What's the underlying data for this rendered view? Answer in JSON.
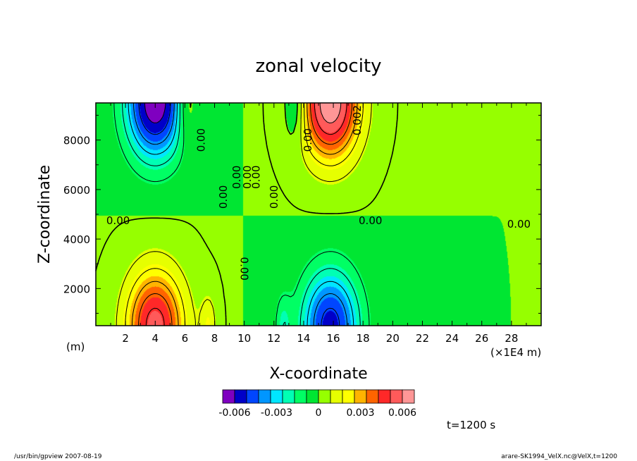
{
  "chart_data": {
    "type": "heatmap",
    "title": "zonal velocity",
    "xlabel": "X-coordinate",
    "ylabel": "Z-coordinate",
    "x_unit_left": "(m)",
    "x_unit_right": "(×1E4 m)",
    "xlim": [
      0,
      30
    ],
    "ylim": [
      500,
      9500
    ],
    "x_ticks": [
      "2",
      "4",
      "6",
      "8",
      "10",
      "12",
      "14",
      "16",
      "18",
      "20",
      "22",
      "24",
      "26",
      "28"
    ],
    "y_ticks": [
      "2000",
      "4000",
      "6000",
      "8000"
    ],
    "contour_labels": [
      "0.00",
      "0.00",
      "0.00",
      "0.00",
      "0.00",
      "0.00",
      "0.00",
      "0.00",
      "0.00",
      "0.00",
      "0.00",
      "0.002"
    ],
    "colorbar": {
      "colors": [
        "#7f00c0",
        "#0000c8",
        "#0046ff",
        "#0096ff",
        "#00e6ff",
        "#00ffb4",
        "#00ff64",
        "#00e632",
        "#96ff00",
        "#e6ff00",
        "#ffff00",
        "#ffb400",
        "#ff6400",
        "#ff2828",
        "#ff5a5a",
        "#ff9696"
      ],
      "tick_labels": [
        "-0.006",
        "-0.003",
        "0",
        "0.003",
        "0.006"
      ],
      "ticks": [
        -0.006,
        -0.003,
        0,
        0.003,
        0.006
      ]
    },
    "blobs": [
      {
        "x": 4.0,
        "z": 9500,
        "sx": 2.0,
        "sz": 2300,
        "amp": -0.0068
      },
      {
        "x": 6.1,
        "z": 9500,
        "sx": 0.7,
        "sz": 1600,
        "amp": 0.002
      },
      {
        "x": 13.5,
        "z": 9500,
        "sx": 0.7,
        "sz": 1600,
        "amp": -0.002
      },
      {
        "x": 15.8,
        "z": 9500,
        "sx": 2.0,
        "sz": 2300,
        "amp": 0.0068
      },
      {
        "x": 4.0,
        "z": 500,
        "sx": 2.0,
        "sz": 2300,
        "amp": 0.0055
      },
      {
        "x": 15.8,
        "z": 500,
        "sx": 2.0,
        "sz": 2300,
        "amp": -0.0055
      },
      {
        "x": 7.6,
        "z": 500,
        "sx": 0.55,
        "sz": 1300,
        "amp": 0.0016
      },
      {
        "x": 12.6,
        "z": 500,
        "sx": 0.55,
        "sz": 1300,
        "amp": -0.0016
      }
    ]
  },
  "time_label": "t=1200 s",
  "footer": {
    "left": "/usr/bin/gpview   2007-08-19",
    "right": "arare-SK1994_VelX.nc@VelX,t=1200"
  }
}
